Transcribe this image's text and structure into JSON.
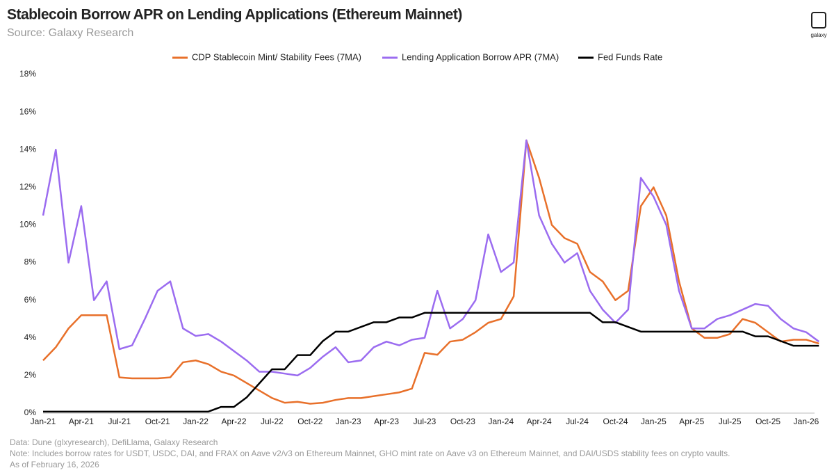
{
  "chart_data": {
    "type": "line",
    "title": "Stablecoin Borrow APR on Lending Applications (Ethereum Mainnet)",
    "subtitle": "Source: Galaxy Research",
    "logo": "galaxy",
    "notes": [
      "Data: Dune (glxyresearch), DefiLlama, Galaxy Research",
      "Note: Includes borrow rates for USDT, USDC, DAI, and FRAX on Aave v2/v3 on Ethereum Mainnet, GHO mint rate on Aave v3 on Ethereum Mainnet, and DAI/USDS stability fees on crypto vaults.",
      "As of February 16, 2026"
    ],
    "x": [
      "Jan-21",
      "Feb-21",
      "Mar-21",
      "Apr-21",
      "May-21",
      "Jun-21",
      "Jul-21",
      "Aug-21",
      "Sep-21",
      "Oct-21",
      "Nov-21",
      "Dec-21",
      "Jan-22",
      "Feb-22",
      "Mar-22",
      "Apr-22",
      "May-22",
      "Jun-22",
      "Jul-22",
      "Aug-22",
      "Sep-22",
      "Oct-22",
      "Nov-22",
      "Dec-22",
      "Jan-23",
      "Feb-23",
      "Mar-23",
      "Apr-23",
      "May-23",
      "Jun-23",
      "Jul-23",
      "Aug-23",
      "Sep-23",
      "Oct-23",
      "Nov-23",
      "Dec-23",
      "Jan-24",
      "Feb-24",
      "Mar-24",
      "Apr-24",
      "May-24",
      "Jun-24",
      "Jul-24",
      "Aug-24",
      "Sep-24",
      "Oct-24",
      "Nov-24",
      "Dec-24",
      "Jan-25",
      "Feb-25",
      "Mar-25",
      "Apr-25",
      "May-25",
      "Jun-25",
      "Jul-25",
      "Aug-25",
      "Sep-25",
      "Oct-25",
      "Nov-25",
      "Dec-25",
      "Jan-26",
      "Feb-26"
    ],
    "series": [
      {
        "name": "CDP Stablecoin Mint/ Stability Fees (7MA)",
        "color": "#e8702a",
        "values": [
          2.8,
          3.5,
          4.5,
          5.2,
          5.2,
          5.2,
          1.9,
          1.85,
          1.85,
          1.85,
          1.9,
          2.7,
          2.8,
          2.6,
          2.2,
          2.0,
          1.6,
          1.2,
          0.8,
          0.55,
          0.6,
          0.5,
          0.55,
          0.7,
          0.8,
          0.8,
          0.9,
          1.0,
          1.1,
          1.3,
          3.2,
          3.1,
          3.8,
          3.9,
          4.3,
          4.8,
          5.0,
          6.2,
          14.5,
          12.5,
          10.0,
          9.3,
          9.0,
          7.5,
          7.0,
          6.0,
          6.5,
          11.0,
          12.0,
          10.5,
          7.0,
          4.5,
          4.0,
          4.0,
          4.2,
          5.0,
          4.8,
          4.3,
          3.8,
          3.9,
          3.9,
          3.7
        ]
      },
      {
        "name": "Lending Application Borrow APR (7MA)",
        "color": "#9b6cf0",
        "values": [
          10.5,
          14,
          8,
          11,
          6,
          7,
          3.4,
          3.6,
          5,
          6.5,
          7,
          4.5,
          4.1,
          4.2,
          3.8,
          3.3,
          2.8,
          2.2,
          2.2,
          2.1,
          2.0,
          2.4,
          3.0,
          3.5,
          2.7,
          2.8,
          3.5,
          3.8,
          3.6,
          3.9,
          4.0,
          6.5,
          4.5,
          5.0,
          6.0,
          9.5,
          7.5,
          8.0,
          14.5,
          10.5,
          9.0,
          8.0,
          8.5,
          6.5,
          5.5,
          4.8,
          5.5,
          12.5,
          11.5,
          10.0,
          6.5,
          4.5,
          4.5,
          5.0,
          5.2,
          5.5,
          5.8,
          5.7,
          5.0,
          4.5,
          4.3,
          3.8
        ]
      },
      {
        "name": "Fed Funds Rate",
        "color": "#000000",
        "values": [
          0.08,
          0.08,
          0.08,
          0.08,
          0.08,
          0.08,
          0.08,
          0.08,
          0.08,
          0.08,
          0.08,
          0.08,
          0.08,
          0.08,
          0.33,
          0.33,
          0.83,
          1.58,
          2.33,
          2.33,
          3.08,
          3.08,
          3.83,
          4.33,
          4.33,
          4.58,
          4.83,
          4.83,
          5.08,
          5.08,
          5.33,
          5.33,
          5.33,
          5.33,
          5.33,
          5.33,
          5.33,
          5.33,
          5.33,
          5.33,
          5.33,
          5.33,
          5.33,
          5.33,
          4.83,
          4.83,
          4.58,
          4.33,
          4.33,
          4.33,
          4.33,
          4.33,
          4.33,
          4.33,
          4.33,
          4.33,
          4.08,
          4.08,
          3.83,
          3.58,
          3.58,
          3.58
        ]
      }
    ],
    "ylim": [
      0,
      18
    ],
    "yticks": [
      {
        "value": 0,
        "label": "0%"
      },
      {
        "value": 2,
        "label": "2%"
      },
      {
        "value": 4,
        "label": "4%"
      },
      {
        "value": 6,
        "label": "6%"
      },
      {
        "value": 8,
        "label": "8%"
      },
      {
        "value": 10,
        "label": "10%"
      },
      {
        "value": 12,
        "label": "12%"
      },
      {
        "value": 14,
        "label": "14%"
      },
      {
        "value": 16,
        "label": "16%"
      },
      {
        "value": 18,
        "label": "18%"
      }
    ],
    "grid": false,
    "legend": "top"
  }
}
